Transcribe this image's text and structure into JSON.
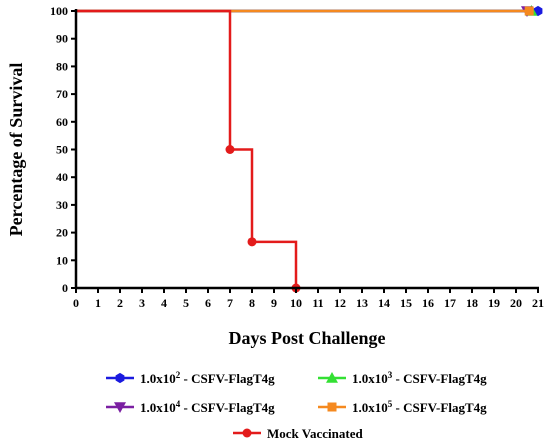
{
  "chart_data": {
    "type": "line",
    "subtype": "survival-step",
    "title": "",
    "xlabel": "Days Post Challenge",
    "ylabel": "Percentage of Survival",
    "xlim": [
      0,
      21
    ],
    "ylim": [
      0,
      100
    ],
    "xticks": [
      0,
      1,
      2,
      3,
      4,
      5,
      6,
      7,
      8,
      9,
      10,
      11,
      12,
      13,
      14,
      15,
      16,
      17,
      18,
      19,
      20,
      21
    ],
    "yticks": [
      0,
      10,
      20,
      30,
      40,
      50,
      60,
      70,
      80,
      90,
      100
    ],
    "grid": false,
    "legend_position": "bottom",
    "series": [
      {
        "name_parts": {
          "prefix": "1.0x10",
          "exp": "2",
          "suffix": " - CSFV-FlagT4g"
        },
        "color": "#1a1adf",
        "marker": "hexagon",
        "x": [
          0,
          21
        ],
        "y": [
          100,
          100
        ],
        "marker_points": [
          [
            21,
            100
          ]
        ]
      },
      {
        "name_parts": {
          "prefix": "1.0x10",
          "exp": "3",
          "suffix": " - CSFV-FlagT4g"
        },
        "color": "#33e033",
        "marker": "triangle-up",
        "x": [
          0,
          20.7
        ],
        "y": [
          100,
          100
        ],
        "marker_points": [
          [
            20.7,
            100
          ]
        ]
      },
      {
        "name_parts": {
          "prefix": "1.0x10",
          "exp": "4",
          "suffix": " - CSFV-FlagT4g"
        },
        "color": "#7b1fa2",
        "marker": "triangle-down",
        "x": [
          0,
          20.5
        ],
        "y": [
          100,
          100
        ],
        "marker_points": [
          [
            20.5,
            100
          ]
        ]
      },
      {
        "name_parts": {
          "prefix": "1.0x10",
          "exp": "5",
          "suffix": " - CSFV-FlagT4g"
        },
        "color": "#f5891f",
        "marker": "square",
        "x": [
          0,
          20.6
        ],
        "y": [
          100,
          100
        ],
        "marker_points": [
          [
            20.6,
            100
          ]
        ]
      },
      {
        "name": "Mock Vaccinated",
        "color": "#e31b1b",
        "marker": "circle",
        "step": [
          [
            0,
            100
          ],
          [
            7,
            100
          ],
          [
            7,
            50
          ],
          [
            8,
            50
          ],
          [
            8,
            16.67
          ],
          [
            10,
            16.67
          ],
          [
            10,
            0
          ]
        ],
        "marker_points": [
          [
            7,
            50
          ],
          [
            8,
            16.67
          ],
          [
            10,
            0
          ]
        ]
      }
    ]
  }
}
